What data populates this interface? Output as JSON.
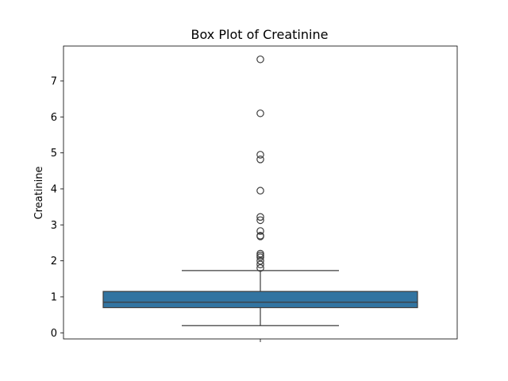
{
  "chart_data": {
    "type": "box",
    "title": "Box Plot of Creatinine",
    "xlabel": "",
    "ylabel": "Creatinine",
    "ylim": [
      -0.17,
      7.97
    ],
    "yticks": [
      0,
      1,
      2,
      3,
      4,
      5,
      6,
      7
    ],
    "grid": false,
    "box": {
      "whisker_low": 0.2,
      "q1": 0.7,
      "median": 0.85,
      "q3": 1.15,
      "whisker_high": 1.73
    },
    "outliers": [
      7.6,
      6.1,
      4.95,
      4.82,
      3.95,
      3.22,
      3.13,
      2.83,
      2.7,
      2.68,
      2.2,
      2.15,
      2.1,
      2.0,
      1.9,
      1.8
    ],
    "colors": {
      "box_fill": "#3274a1",
      "line": "#3d3d3d",
      "axes": "#000000",
      "background": "#ffffff"
    }
  }
}
